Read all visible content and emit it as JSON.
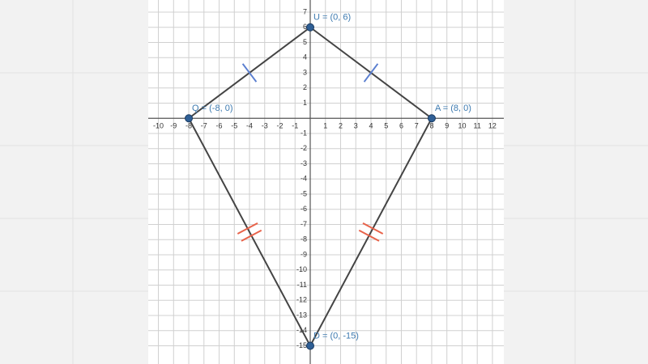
{
  "chart_data": {
    "type": "scatter",
    "series": [
      {
        "name": null,
        "color": "#1f4f7f",
        "x": [
          0,
          8,
          0,
          -8
        ],
        "y": [
          6,
          0,
          -15,
          0
        ],
        "labels": [
          "U = (0, 6)",
          "A = (8, 0)",
          "D = (0, -15)",
          "Q = (-8, 0)"
        ]
      }
    ],
    "xlim": [
      -10.67,
      12.75
    ],
    "ylim": [
      -16.2,
      7.8
    ],
    "xticks": [
      -10,
      -9,
      -8,
      -7,
      -6,
      -5,
      -4,
      -3,
      -2,
      -1,
      1,
      2,
      3,
      4,
      5,
      6,
      7,
      8,
      9,
      10,
      11,
      12
    ],
    "yticks": [
      -15,
      -14,
      -13,
      -12,
      -11,
      -10,
      -9,
      -8,
      -7,
      -6,
      -5,
      -4,
      -3,
      -2,
      -1,
      1,
      2,
      3,
      4,
      5,
      6,
      7
    ],
    "grid": true
  }
}
